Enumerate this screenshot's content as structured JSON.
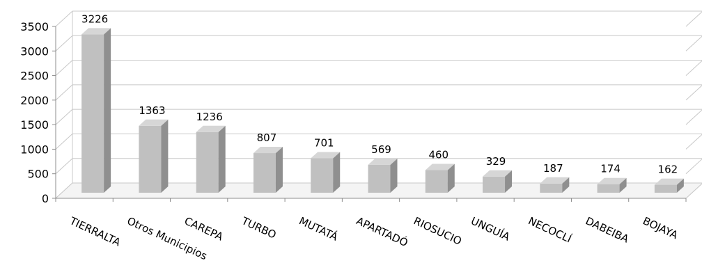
{
  "chart_data": {
    "type": "bar",
    "style": "3d-column",
    "categories": [
      "TIERRALTA",
      "Otros Municipios",
      "CAREPA",
      "TURBO",
      "MUTATÁ",
      "APARTADÓ",
      "RIOSUCIO",
      "UNGUÍA",
      "NECOCLÍ",
      "DABEIBA",
      "BOJAYA"
    ],
    "values": [
      3226,
      1363,
      1236,
      807,
      701,
      569,
      460,
      329,
      187,
      174,
      162
    ],
    "ylim": [
      0,
      3500
    ],
    "yticks": [
      "0",
      "500",
      "1000",
      "1500",
      "2000",
      "2500",
      "3000",
      "3500"
    ],
    "grid": true,
    "legend": "none",
    "colors": {
      "bar_front": "#c0c0c0",
      "bar_side": "#8f8f8f",
      "bar_top": "#d6d6d6",
      "grid": "#c8c8c8",
      "axis": "#8c8c8c"
    }
  }
}
